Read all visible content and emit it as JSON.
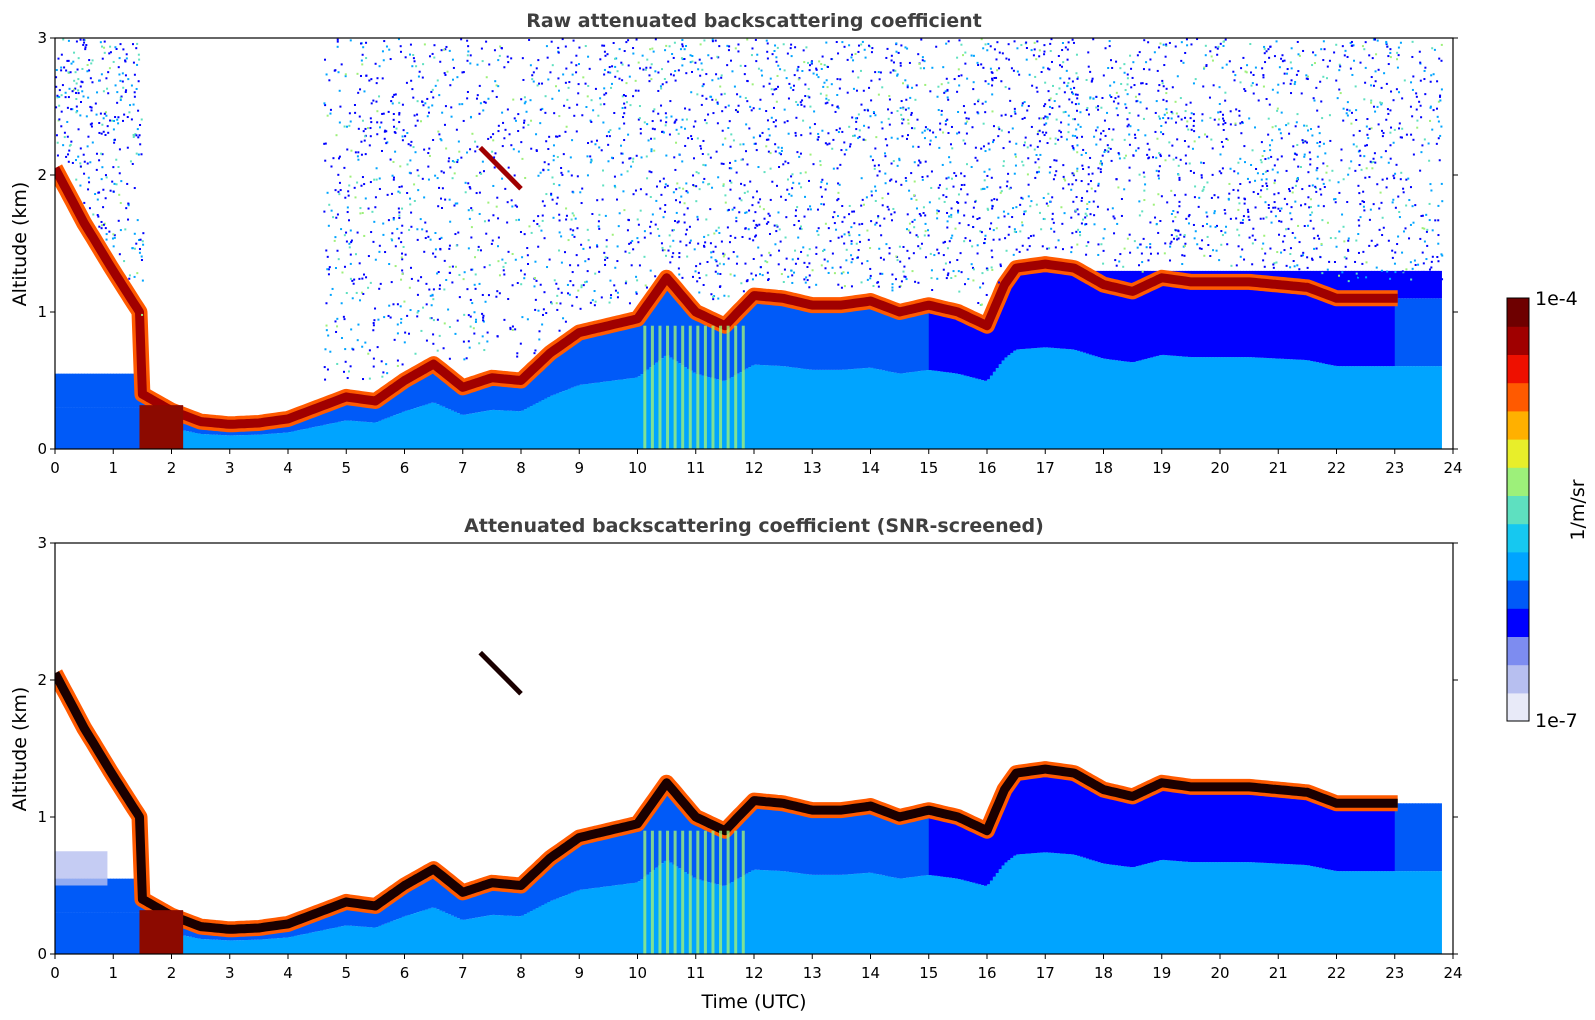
{
  "colors": {
    "cmap": [
      "#e8eaf8",
      "#b7bff0",
      "#7d8cf0",
      "#0000ff",
      "#005af8",
      "#00a4ff",
      "#16c8f0",
      "#5ee0c0",
      "#9df07a",
      "#e8ee2a",
      "#ffb000",
      "#ff5a00",
      "#ee1000",
      "#a00000",
      "#6e0000"
    ],
    "sharp_core": "#1a0000",
    "low_cloud_core": "#8c0a00",
    "frame": "#000000"
  },
  "chart_data": [
    {
      "type": "heatmap",
      "title": "Raw attenuated backscattering coefficient",
      "xlabel": "",
      "ylabel": "Altitude (km)",
      "xlim": [
        0,
        24
      ],
      "ylim": [
        0,
        3
      ],
      "xticks": [
        "0",
        "1",
        "2",
        "3",
        "4",
        "5",
        "6",
        "7",
        "8",
        "9",
        "10",
        "11",
        "12",
        "13",
        "14",
        "15",
        "16",
        "17",
        "18",
        "19",
        "20",
        "21",
        "22",
        "23",
        "24"
      ],
      "yticks": [
        "0",
        "1",
        "2",
        "3"
      ],
      "data_coverage_hours": [
        0,
        23.8
      ],
      "cloud_base_km": {
        "time_utc": [
          0,
          0.5,
          1.0,
          1.45,
          1.5,
          2.0,
          2.5,
          3.0,
          3.5,
          4.0,
          4.5,
          5.0,
          5.5,
          6.0,
          6.5,
          7.0,
          7.5,
          8.0,
          8.5,
          9.0,
          9.5,
          10.0,
          10.5,
          11.0,
          11.5,
          12.0,
          12.5,
          13.0,
          13.5,
          14.0,
          14.5,
          15.0,
          15.5,
          16.0,
          16.3,
          16.5,
          17.0,
          17.5,
          18.0,
          18.5,
          19.0,
          19.5,
          20.0,
          20.5,
          21.0,
          21.5,
          22.0,
          22.5,
          23.0
        ],
        "altitude_km": [
          2.05,
          1.65,
          1.3,
          1.0,
          0.4,
          0.28,
          0.2,
          0.18,
          0.19,
          0.22,
          0.3,
          0.38,
          0.35,
          0.5,
          0.62,
          0.45,
          0.52,
          0.5,
          0.7,
          0.85,
          0.9,
          0.95,
          1.25,
          1.0,
          0.9,
          1.12,
          1.1,
          1.05,
          1.05,
          1.08,
          1.0,
          1.05,
          1.0,
          0.9,
          1.2,
          1.32,
          1.35,
          1.32,
          1.2,
          1.15,
          1.25,
          1.22,
          1.22,
          1.22,
          1.2,
          1.18,
          1.1,
          1.1,
          1.1
        ]
      },
      "elevated_layer": {
        "time_utc": [
          7.3,
          8.0
        ],
        "altitude_km": [
          2.2,
          1.9
        ]
      },
      "noise": true
    },
    {
      "type": "heatmap",
      "title": "Attenuated backscattering coefficient (SNR-screened)",
      "xlabel": "Time (UTC)",
      "ylabel": "Altitude (km)",
      "xlim": [
        0,
        24
      ],
      "ylim": [
        0,
        3
      ],
      "xticks": [
        "0",
        "1",
        "2",
        "3",
        "4",
        "5",
        "6",
        "7",
        "8",
        "9",
        "10",
        "11",
        "12",
        "13",
        "14",
        "15",
        "16",
        "17",
        "18",
        "19",
        "20",
        "21",
        "22",
        "23",
        "24"
      ],
      "yticks": [
        "0",
        "1",
        "2",
        "3"
      ],
      "data_coverage_hours": [
        0,
        23.8
      ],
      "noise": false
    }
  ],
  "colorbar": {
    "max_label": "1e-4",
    "min_label": "1e-7",
    "label": "1/m/sr",
    "scale": "log",
    "range": [
      1e-07,
      0.0001
    ]
  }
}
